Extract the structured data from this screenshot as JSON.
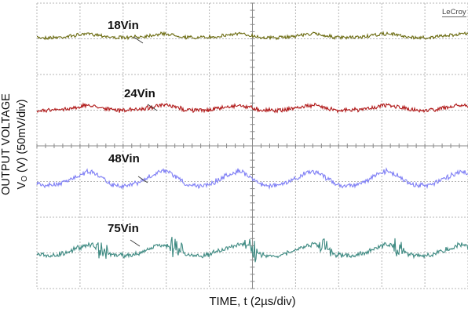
{
  "brand": "LeCroy",
  "chart_data": {
    "type": "line",
    "title": "",
    "xlabel": "TIME, t (2µs/div)",
    "ylabel_line1": "OUTPUT VOLTAGE",
    "ylabel_line2": "V",
    "ylabel_subscript": "O",
    "ylabel_line2_rest": " (V) (50mV/div)",
    "x_divisions": 10,
    "y_divisions": 8,
    "grid": true,
    "time_per_div_us": 2,
    "volts_per_div_mV": 50,
    "ripple_period_div": 1.73,
    "series": [
      {
        "name": "18Vin",
        "color": "#6b6b10",
        "ripple_pp_div": 0.12,
        "noise_div": 0.04,
        "spike": false
      },
      {
        "name": "24Vin",
        "color": "#b01818",
        "ripple_pp_div": 0.15,
        "noise_div": 0.05,
        "spike": false
      },
      {
        "name": "48Vin",
        "color": "#7f7ff5",
        "ripple_pp_div": 0.45,
        "noise_div": 0.06,
        "spike": false
      },
      {
        "name": "75Vin",
        "color": "#3e8a82",
        "ripple_pp_div": 0.35,
        "noise_div": 0.06,
        "spike": true
      }
    ]
  }
}
